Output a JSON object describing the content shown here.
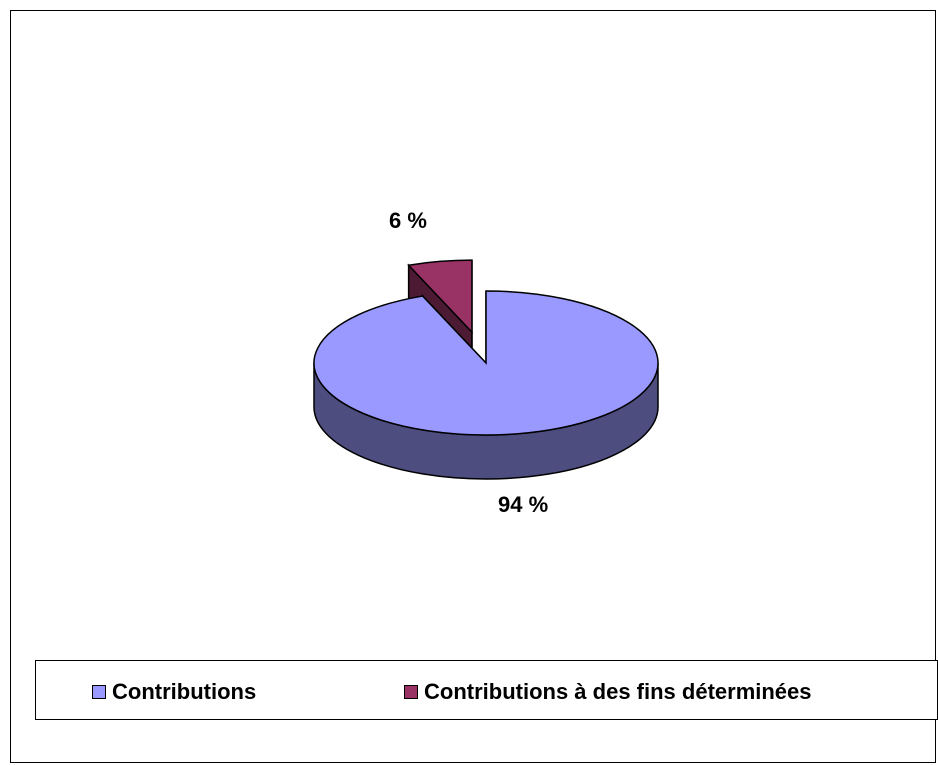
{
  "chart_data": {
    "type": "pie",
    "style": "3d-exploded",
    "categories": [
      "Contributions",
      "Contributions à des fins déterminées"
    ],
    "values": [
      94,
      6
    ],
    "unit": "%",
    "data_labels": [
      "94 %",
      "6 %"
    ],
    "colors": [
      "#9999ff",
      "#993366"
    ],
    "side_colors": [
      "#4d4d80",
      "#4d1a33"
    ],
    "legend_placement": "bottom"
  },
  "legend": {
    "items": [
      {
        "label": "Contributions",
        "color": "#9999ff"
      },
      {
        "label": "Contributions à des fins déterminées",
        "color": "#993366"
      }
    ]
  }
}
